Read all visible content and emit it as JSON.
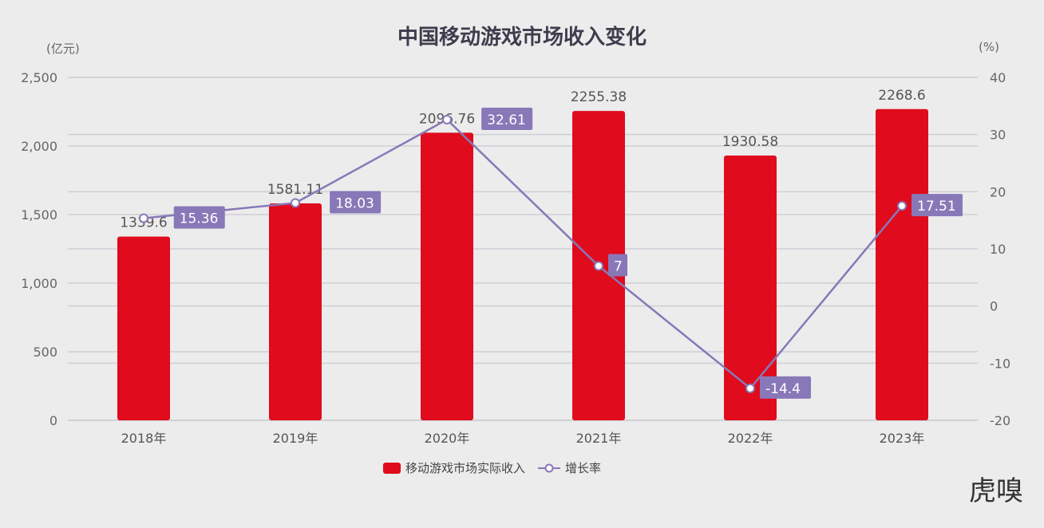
{
  "chart_data": {
    "type": "bar",
    "title": "中国移动游戏市场收入变化",
    "left_unit": "(亿元)",
    "right_unit": "(%)",
    "categories": [
      "2018年",
      "2019年",
      "2020年",
      "2021年",
      "2022年",
      "2023年"
    ],
    "series": [
      {
        "name": "移动游戏市场实际收入",
        "type": "bar",
        "axis": "left",
        "values": [
          1339.6,
          1581.11,
          2096.76,
          2255.38,
          1930.58,
          2268.6
        ],
        "color": "#e00b1c"
      },
      {
        "name": "增长率",
        "type": "line",
        "axis": "right",
        "values": [
          15.36,
          18.03,
          32.61,
          7,
          -14.4,
          17.51
        ],
        "color": "#8878b8"
      }
    ],
    "left_axis": {
      "ylim": [
        0,
        2500
      ],
      "ticks": [
        "0",
        "500",
        "1,000",
        "1,500",
        "2,000",
        "2,500"
      ]
    },
    "right_axis": {
      "ylim": [
        -20,
        40
      ],
      "ticks": [
        "-20",
        "-10",
        "0",
        "10",
        "20",
        "30",
        "40"
      ]
    },
    "grid": true,
    "legend_position": "bottom"
  },
  "watermark": "虎嗅"
}
